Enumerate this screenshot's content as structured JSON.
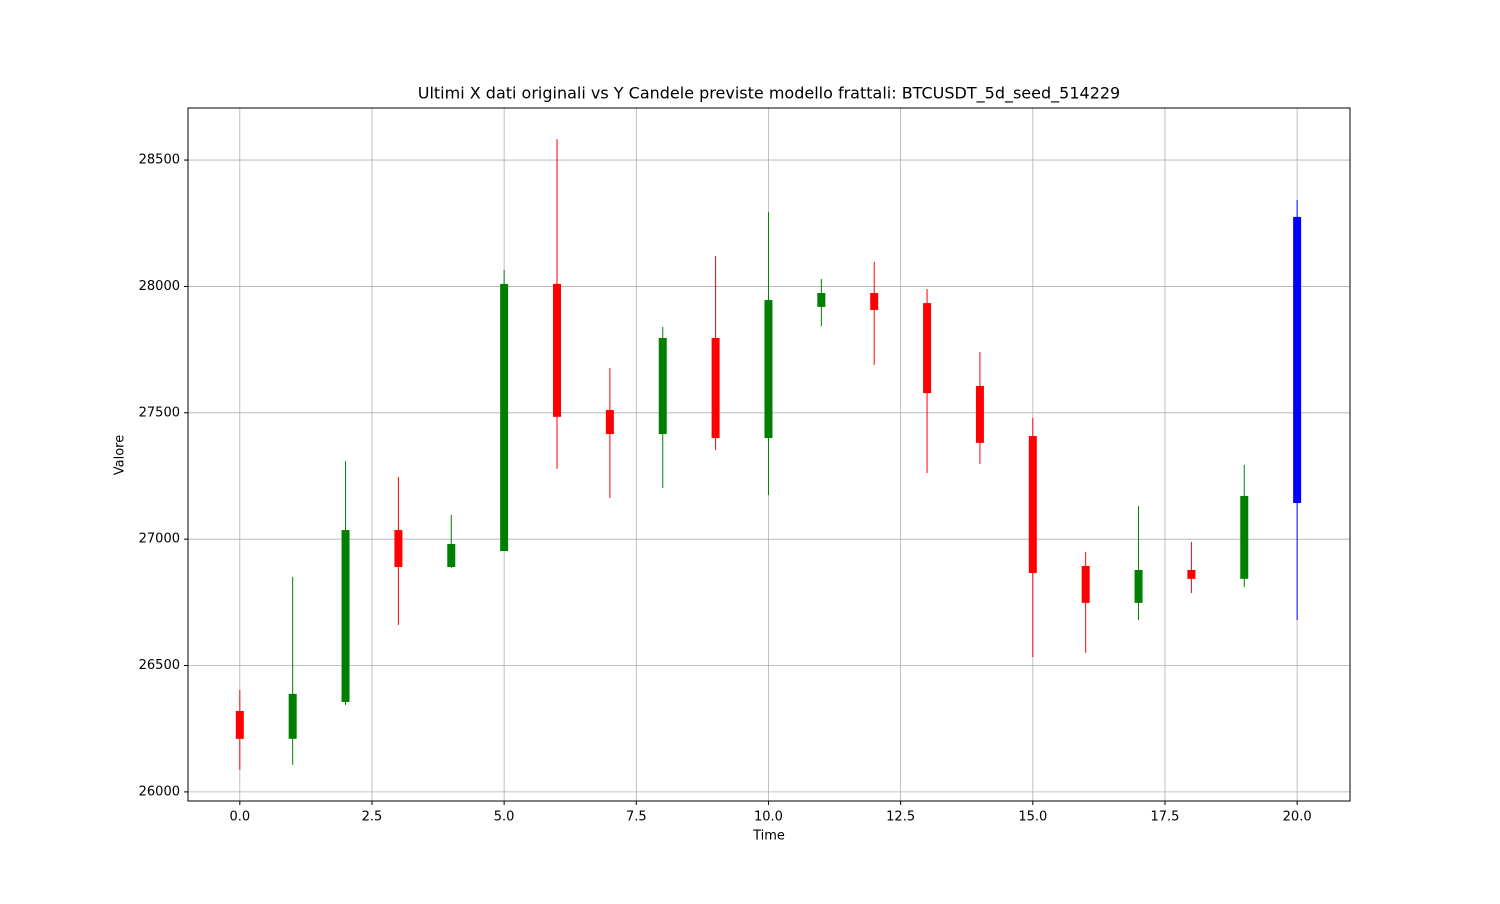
{
  "chart_data": {
    "type": "candlestick",
    "title": "Ultimi X dati originali vs Y Candele previste modello frattali: BTCUSDT_5d_seed_514229",
    "xlabel": "Time",
    "ylabel": "Valore",
    "x": [
      0,
      1,
      2,
      3,
      4,
      5,
      6,
      7,
      8,
      9,
      10,
      11,
      12,
      13,
      14,
      15,
      16,
      17,
      18,
      19,
      20
    ],
    "open": [
      26320,
      26210,
      26356,
      27036,
      26890,
      26953,
      28010,
      27511,
      27416,
      27796,
      27400,
      27919,
      27974,
      27934,
      27606,
      27408,
      26894,
      26748,
      26878,
      26843,
      27143
    ],
    "high": [
      26404,
      26851,
      27309,
      27246,
      27096,
      28065,
      28583,
      27677,
      27840,
      28120,
      28294,
      28029,
      28097,
      27990,
      27741,
      27480,
      26949,
      27131,
      26989,
      27294,
      28342
    ],
    "low": [
      26087,
      26107,
      26344,
      26661,
      26886,
      26953,
      27278,
      27163,
      27203,
      27353,
      27175,
      27843,
      27689,
      27262,
      27298,
      26534,
      26550,
      26680,
      26787,
      26811,
      26680
    ],
    "close": [
      26210,
      26388,
      27036,
      26890,
      26981,
      28010,
      27484,
      27416,
      27796,
      27400,
      27946,
      27974,
      27907,
      27578,
      27381,
      26866,
      26748,
      26878,
      26843,
      27171,
      28275
    ],
    "colors": [
      "red",
      "green",
      "green",
      "red",
      "green",
      "green",
      "red",
      "red",
      "green",
      "red",
      "green",
      "green",
      "red",
      "red",
      "red",
      "red",
      "red",
      "green",
      "red",
      "green",
      "blue"
    ],
    "xlim": [
      -0.98,
      21.0
    ],
    "ylim": [
      25964,
      28706
    ],
    "xticks": [
      {
        "value": 0,
        "label": "0.0"
      },
      {
        "value": 2.5,
        "label": "2.5"
      },
      {
        "value": 5,
        "label": "5.0"
      },
      {
        "value": 7.5,
        "label": "7.5"
      },
      {
        "value": 10,
        "label": "10.0"
      },
      {
        "value": 12.5,
        "label": "12.5"
      },
      {
        "value": 15,
        "label": "15.0"
      },
      {
        "value": 17.5,
        "label": "17.5"
      },
      {
        "value": 20,
        "label": "20.0"
      }
    ],
    "yticks": [
      26000,
      26500,
      27000,
      27500,
      28000,
      28500
    ],
    "grid": true
  }
}
